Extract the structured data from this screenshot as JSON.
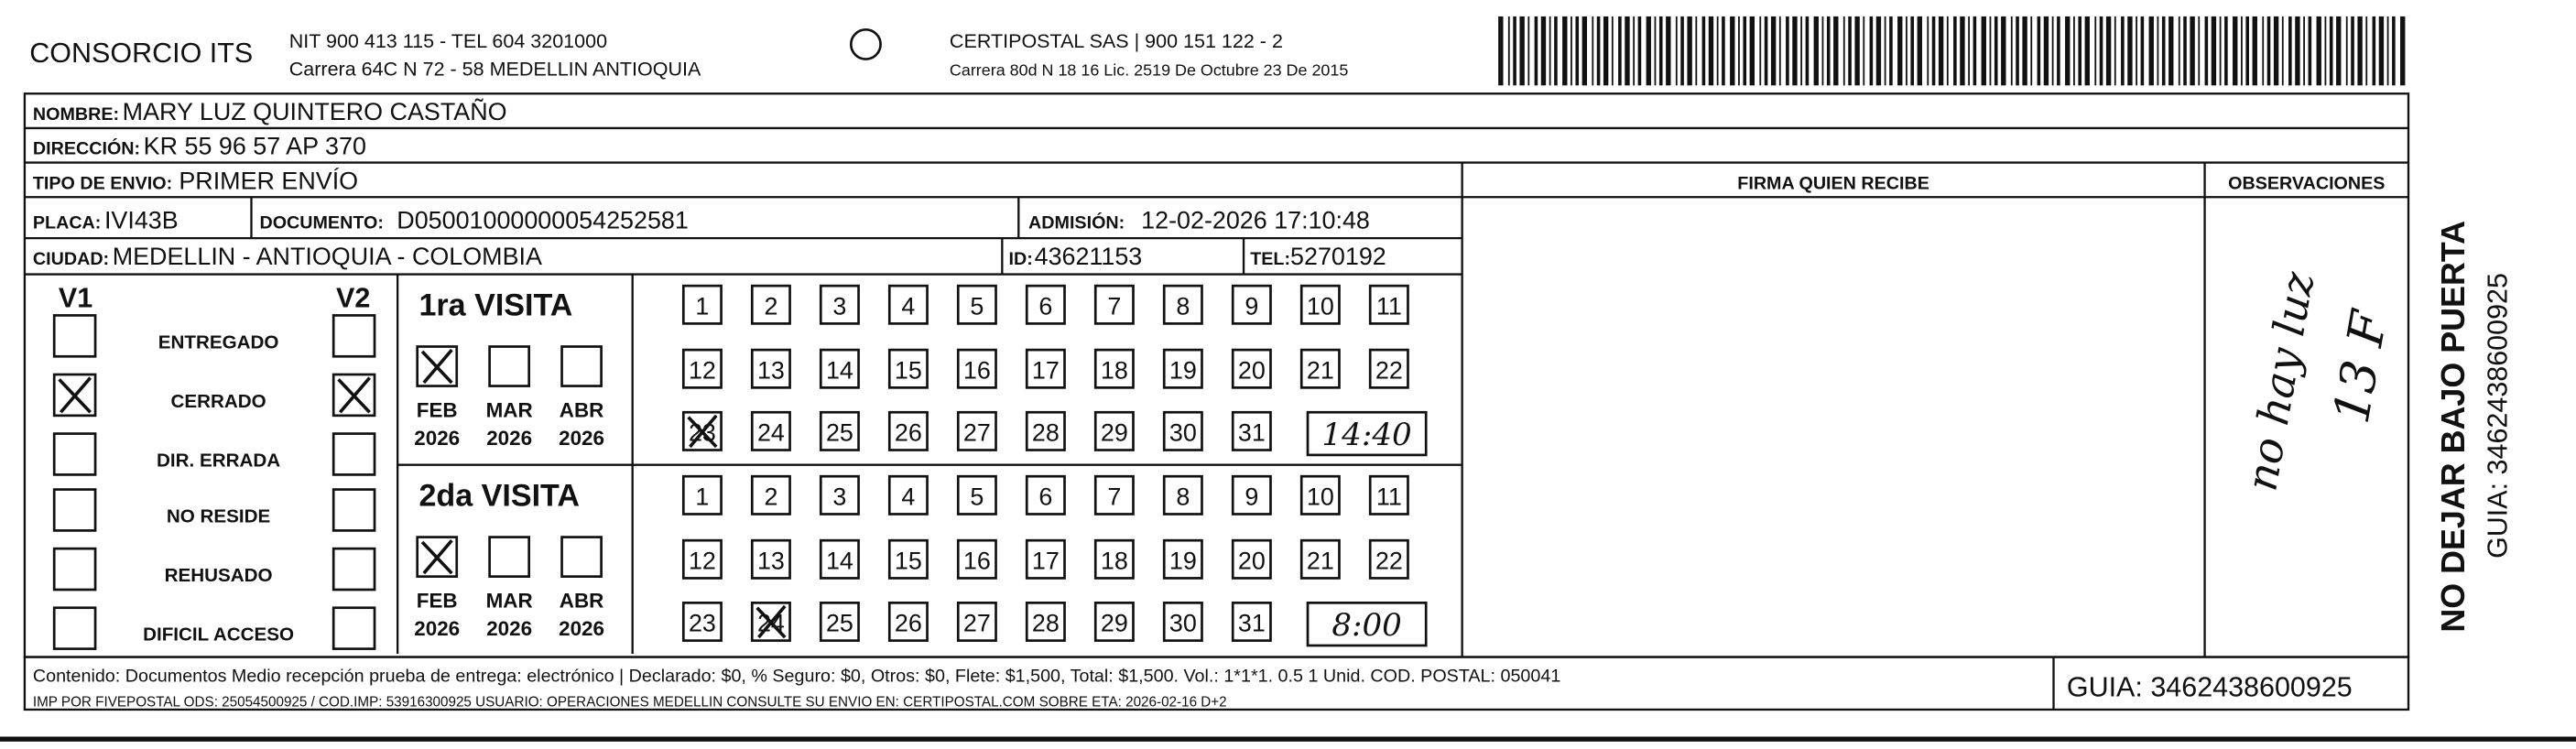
{
  "header": {
    "company": "CONSORCIO ITS",
    "nit": "NIT 900 413 115 - TEL 604 3201000",
    "address": "Carrera 64C N 72 - 58 MEDELLIN ANTIOQUIA",
    "certipostal": "CERTIPOSTAL SAS | 900 151 122 - 2",
    "certipostal_address": "Carrera 80d N 18 16  Lic. 2519 De Octubre 23 De 2015"
  },
  "fields": [
    {
      "label": "NOMBRE:",
      "value": "MARY LUZ QUINTERO CASTAÑO"
    },
    {
      "label": "DIRECCIÓN:",
      "value": "KR 55 96 57 AP 370"
    },
    {
      "label": "TIPO DE ENVIO:",
      "value": "PRIMER ENVÍO"
    },
    {
      "label": "PLACA:",
      "value": "IVI43B"
    },
    {
      "label": "DOCUMENTO:",
      "value": "D05001000000054252581"
    },
    {
      "label": "ADMISIÓN:",
      "value": "12-02-2026 17:10:48"
    },
    {
      "label": "CIUDAD:",
      "value": "MEDELLIN - ANTIOQUIA - COLOMBIA"
    },
    {
      "label": "ID:",
      "value": "43621153"
    },
    {
      "label": "TEL:",
      "value": "5270192"
    }
  ],
  "columns": {
    "signature": "FIRMA QUIEN RECIBE",
    "observations": "OBSERVACIONES"
  },
  "status": {
    "v1": "V1",
    "v2": "V2",
    "reasons": [
      "ENTREGADO",
      "CERRADO",
      "DIR. ERRADA",
      "NO RESIDE",
      "REHUSADO",
      "DIFICIL ACCESO"
    ]
  },
  "visits": [
    {
      "title": "1ra VISITA",
      "months": [
        "FEB",
        "MAR",
        "ABR"
      ],
      "year": "2026",
      "days": [
        "1",
        "2",
        "3",
        "4",
        "5",
        "6",
        "7",
        "8",
        "9",
        "10",
        "11",
        "12",
        "13",
        "14",
        "15",
        "16",
        "17",
        "18",
        "19",
        "20",
        "21",
        "22",
        "23",
        "24",
        "25",
        "26",
        "27",
        "28",
        "29",
        "30",
        "31"
      ],
      "time": "14:40"
    },
    {
      "title": "2da VISITA",
      "months": [
        "FEB",
        "MAR",
        "ABR"
      ],
      "year": "2026",
      "days": [
        "1",
        "2",
        "3",
        "4",
        "5",
        "6",
        "7",
        "8",
        "9",
        "10",
        "11",
        "12",
        "13",
        "14",
        "15",
        "16",
        "17",
        "18",
        "19",
        "20",
        "21",
        "22",
        "23",
        "24",
        "25",
        "26",
        "27",
        "28",
        "29",
        "30",
        "31"
      ],
      "time": "8:00"
    }
  ],
  "observation_notes": [
    "no hay luz",
    "13 F"
  ],
  "footer": {
    "contents": "Contenido: Documentos Medio recepción prueba de entrega: electrónico | Declarado: $0, % Seguro: $0, Otros: $0, Flete: $1,500, Total: $1,500. Vol.: 1*1*1. 0.5  1 Unid. COD. POSTAL: 050041",
    "imp": "IMP POR FIVEPOSTAL ODS: 25054500925 / COD.IMP: 53916300925 USUARIO: OPERACIONES MEDELLIN CONSULTE SU ENVIO EN: CERTIPOSTAL.COM SOBRE ETA: 2026-02-16 D+2",
    "guide": "GUIA: 3462438600925"
  },
  "side": {
    "warning": "NO DEJAR BAJO PUERTA",
    "guide": "GUIA: 3462438600925"
  }
}
